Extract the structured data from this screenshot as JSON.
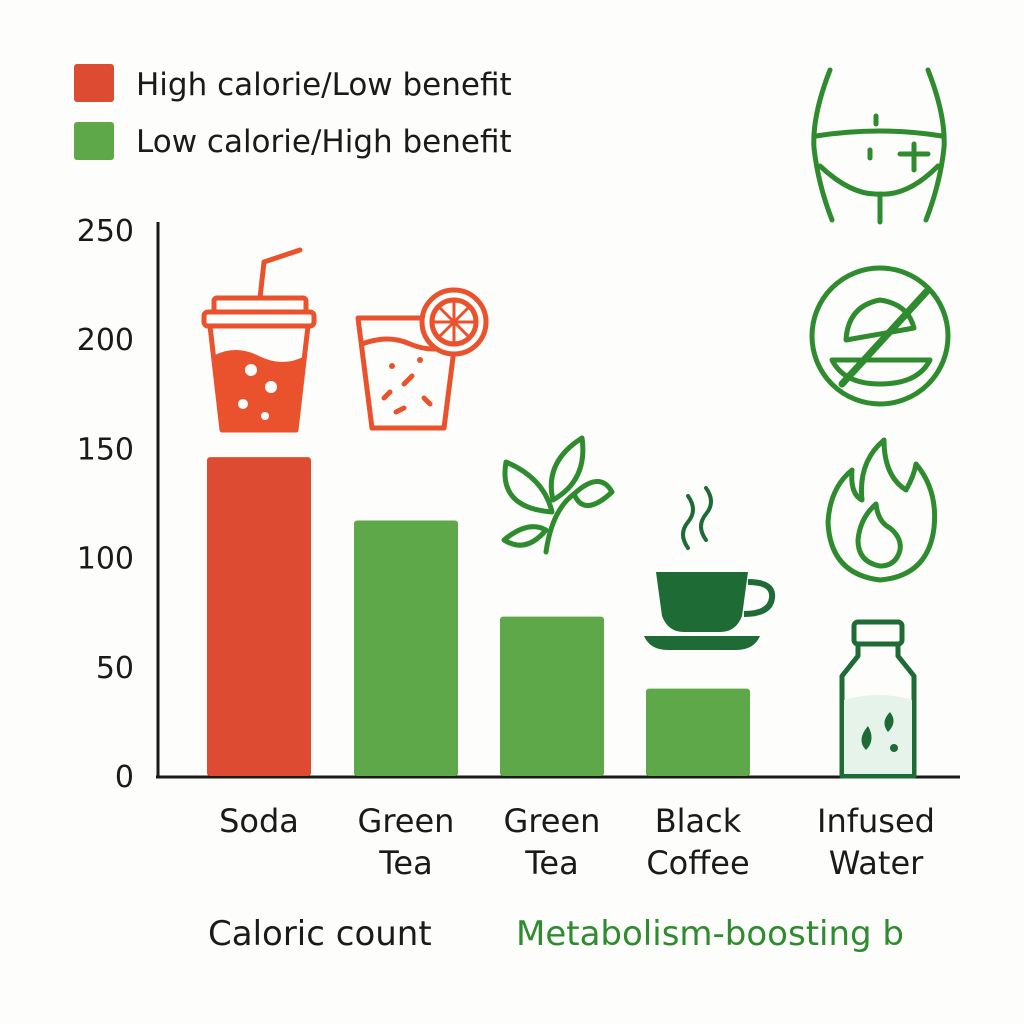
{
  "legend": [
    {
      "label": "High calorie/Low benefit",
      "color": "#dd4b32"
    },
    {
      "label": "Low calorie/High benefit",
      "color": "#5ea84a"
    }
  ],
  "footer": {
    "left": "Caloric count",
    "right": "Metabolism-boosting b",
    "right_color": "#2e8b2e"
  },
  "colors": {
    "orange_icon": "#e9522c",
    "green_icon": "#2e8b2e",
    "dark_green": "#1f6b35"
  },
  "icons": {
    "categories": [
      "soda-cup-icon",
      "juice-glass-icon",
      "tea-leaf-icon",
      "coffee-cup-icon",
      "water-bottle-icon"
    ],
    "side": [
      "waist-icon",
      "no-food-icon",
      "flame-icon"
    ]
  },
  "chart_data": {
    "type": "bar",
    "categories": [
      [
        "Soda"
      ],
      [
        "Green",
        "Tea"
      ],
      [
        "Green",
        "Tea"
      ],
      [
        "Black",
        "Coffee"
      ],
      [
        "Infused",
        "Water"
      ]
    ],
    "values": [
      146,
      117,
      73,
      40,
      0
    ],
    "series_index": [
      0,
      1,
      1,
      1,
      1
    ],
    "ylim": [
      0,
      250
    ],
    "yticks": [
      0,
      50,
      100,
      150,
      200,
      250
    ],
    "grid": false,
    "legend_position": "top-left"
  }
}
